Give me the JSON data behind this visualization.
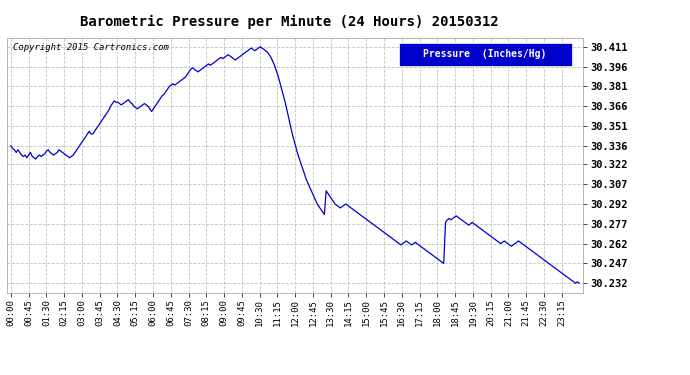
{
  "title": "Barometric Pressure per Minute (24 Hours) 20150312",
  "copyright": "Copyright 2015 Cartronics.com",
  "legend_label": "Pressure  (Inches/Hg)",
  "line_color": "#0000cc",
  "background_color": "#ffffff",
  "grid_color": "#bbbbbb",
  "legend_bg": "#0000cc",
  "legend_text_color": "#ffffff",
  "yticks": [
    30.232,
    30.247,
    30.262,
    30.277,
    30.292,
    30.307,
    30.322,
    30.336,
    30.351,
    30.366,
    30.381,
    30.396,
    30.411
  ],
  "ylim": [
    30.225,
    30.418
  ],
  "xtick_labels": [
    "00:00",
    "00:45",
    "01:30",
    "02:15",
    "03:00",
    "03:45",
    "04:30",
    "05:15",
    "06:00",
    "06:45",
    "07:30",
    "08:15",
    "09:00",
    "09:45",
    "10:30",
    "11:15",
    "12:00",
    "12:45",
    "13:30",
    "14:15",
    "15:00",
    "15:45",
    "16:30",
    "17:15",
    "18:00",
    "18:45",
    "19:30",
    "20:15",
    "21:00",
    "21:45",
    "22:30",
    "23:15"
  ],
  "pressure_data": [
    30.336,
    30.334,
    30.333,
    30.331,
    30.333,
    30.331,
    30.329,
    30.328,
    30.329,
    30.327,
    30.329,
    30.331,
    30.328,
    30.327,
    30.326,
    30.328,
    30.329,
    30.328,
    30.329,
    30.33,
    30.332,
    30.333,
    30.331,
    30.33,
    30.329,
    30.33,
    30.331,
    30.333,
    30.332,
    30.331,
    30.33,
    30.329,
    30.328,
    30.327,
    30.328,
    30.329,
    30.331,
    30.333,
    30.335,
    30.337,
    30.339,
    30.341,
    30.343,
    30.345,
    30.347,
    30.345,
    30.345,
    30.347,
    30.349,
    30.351,
    30.353,
    30.355,
    30.357,
    30.359,
    30.361,
    30.363,
    30.366,
    30.368,
    30.37,
    30.369,
    30.369,
    30.368,
    30.367,
    30.368,
    30.369,
    30.37,
    30.371,
    30.369,
    30.368,
    30.366,
    30.365,
    30.364,
    30.365,
    30.366,
    30.367,
    30.368,
    30.367,
    30.366,
    30.364,
    30.362,
    30.364,
    30.366,
    30.368,
    30.37,
    30.372,
    30.374,
    30.375,
    30.377,
    30.379,
    30.381,
    30.382,
    30.383,
    30.382,
    30.383,
    30.384,
    30.385,
    30.386,
    30.387,
    30.388,
    30.39,
    30.392,
    30.394,
    30.395,
    30.394,
    30.393,
    30.392,
    30.393,
    30.394,
    30.395,
    30.396,
    30.397,
    30.398,
    30.397,
    30.398,
    30.399,
    30.4,
    30.401,
    30.402,
    30.403,
    30.402,
    30.403,
    30.404,
    30.405,
    30.404,
    30.403,
    30.402,
    30.401,
    30.402,
    30.403,
    30.404,
    30.405,
    30.406,
    30.407,
    30.408,
    30.409,
    30.41,
    30.409,
    30.408,
    30.409,
    30.41,
    30.411,
    30.41,
    30.409,
    30.408,
    30.407,
    30.405,
    30.403,
    30.4,
    30.397,
    30.393,
    30.389,
    30.384,
    30.379,
    30.374,
    30.369,
    30.363,
    30.357,
    30.351,
    30.345,
    30.34,
    30.335,
    30.33,
    30.326,
    30.322,
    30.318,
    30.314,
    30.31,
    30.307,
    30.304,
    30.301,
    30.298,
    30.295,
    30.292,
    30.29,
    30.288,
    30.286,
    30.284,
    30.302,
    30.3,
    30.298,
    30.296,
    30.294,
    30.292,
    30.291,
    30.29,
    30.289,
    30.29,
    30.291,
    30.292,
    30.291,
    30.29,
    30.289,
    30.288,
    30.287,
    30.286,
    30.285,
    30.284,
    30.283,
    30.282,
    30.281,
    30.28,
    30.279,
    30.278,
    30.277,
    30.276,
    30.275,
    30.274,
    30.273,
    30.272,
    30.271,
    30.27,
    30.269,
    30.268,
    30.267,
    30.266,
    30.265,
    30.264,
    30.263,
    30.262,
    30.261,
    30.262,
    30.263,
    30.264,
    30.263,
    30.262,
    30.261,
    30.262,
    30.263,
    30.262,
    30.261,
    30.26,
    30.259,
    30.258,
    30.257,
    30.256,
    30.255,
    30.254,
    30.253,
    30.252,
    30.251,
    30.25,
    30.249,
    30.248,
    30.247,
    30.278,
    30.28,
    30.281,
    30.28,
    30.281,
    30.282,
    30.283,
    30.282,
    30.281,
    30.28,
    30.279,
    30.278,
    30.277,
    30.276,
    30.277,
    30.278,
    30.277,
    30.276,
    30.275,
    30.274,
    30.273,
    30.272,
    30.271,
    30.27,
    30.269,
    30.268,
    30.267,
    30.266,
    30.265,
    30.264,
    30.263,
    30.262,
    30.263,
    30.264,
    30.263,
    30.262,
    30.261,
    30.26,
    30.261,
    30.262,
    30.263,
    30.264,
    30.263,
    30.262,
    30.261,
    30.26,
    30.259,
    30.258,
    30.257,
    30.256,
    30.255,
    30.254,
    30.253,
    30.252,
    30.251,
    30.25,
    30.249,
    30.248,
    30.247,
    30.246,
    30.245,
    30.244,
    30.243,
    30.242,
    30.241,
    30.24,
    30.239,
    30.238,
    30.237,
    30.236,
    30.235,
    30.234,
    30.233,
    30.232,
    30.233,
    30.232
  ]
}
